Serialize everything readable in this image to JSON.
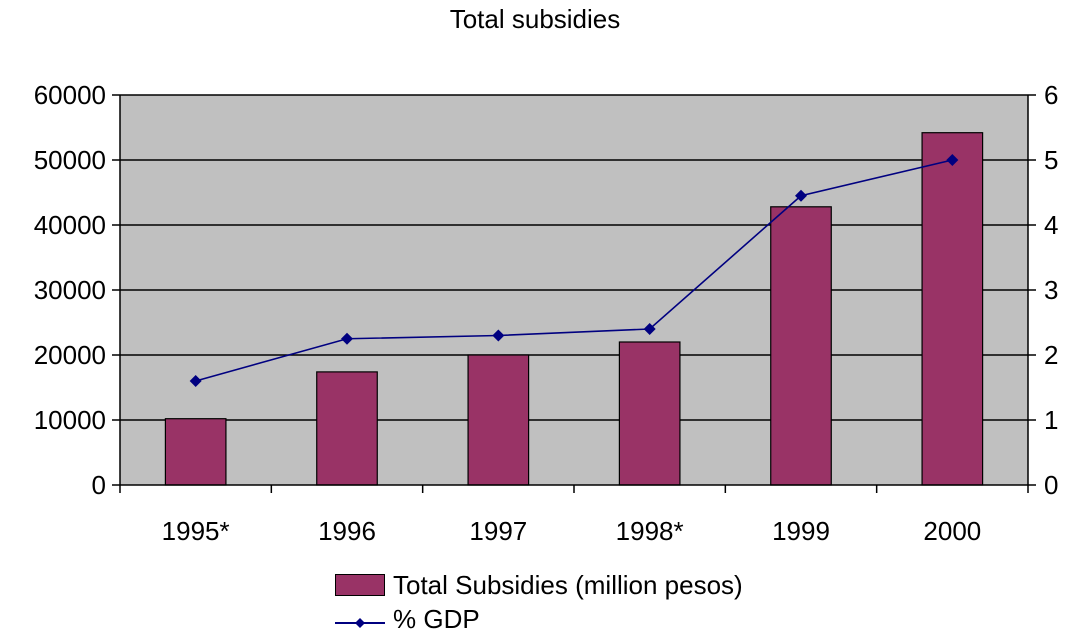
{
  "chart_data": {
    "type": "bar",
    "title": "Total subsidies",
    "categories": [
      "1995*",
      "1996",
      "1997",
      "1998*",
      "1999",
      "2000"
    ],
    "series": [
      {
        "name": "Total Subsidies (million pesos)",
        "type": "bar",
        "axis": "left",
        "values": [
          10200,
          17400,
          20000,
          22000,
          42800,
          54200
        ]
      },
      {
        "name": "% GDP",
        "type": "line",
        "axis": "right",
        "values": [
          1.6,
          2.25,
          2.3,
          2.4,
          4.45,
          5.0
        ]
      }
    ],
    "y_left": {
      "ylim": [
        0,
        60000
      ],
      "ticks": [
        "0",
        "10000",
        "20000",
        "30000",
        "40000",
        "50000",
        "60000"
      ]
    },
    "y_right": {
      "ylim": [
        0,
        6
      ],
      "ticks": [
        "0",
        "1",
        "2",
        "3",
        "4",
        "5",
        "6"
      ]
    },
    "grid": true,
    "legend_position": "bottom",
    "colors": {
      "plot_background": "#c0c0c0",
      "bar_fill": "#993366",
      "line": "#000080",
      "marker": "#000080"
    }
  }
}
